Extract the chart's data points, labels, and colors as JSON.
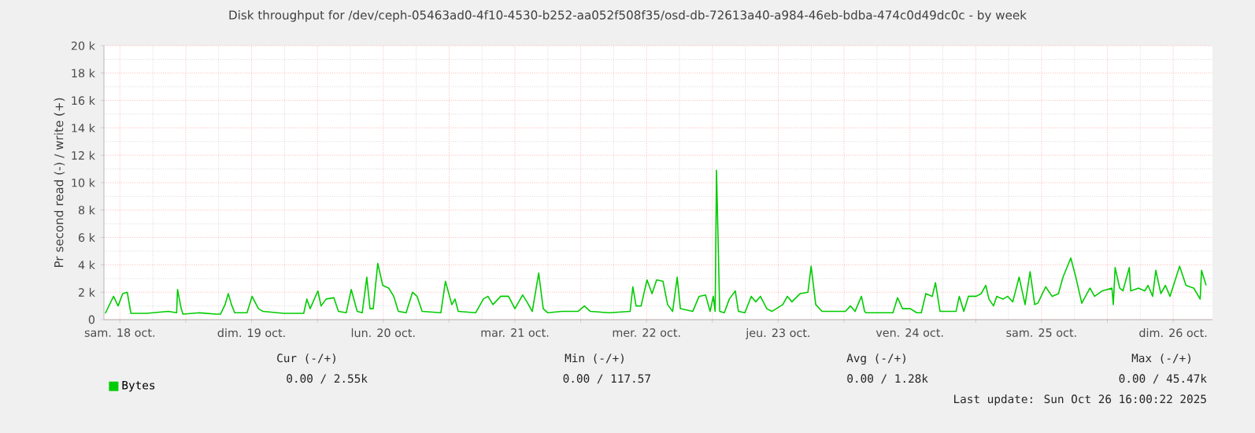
{
  "chart_data": {
    "type": "line",
    "title": "Disk throughput for /dev/ceph-05463ad0-4f10-4530-b252-aa052f508f35/osd-db-72613a40-a984-46eb-bdba-474c0d49dc0c - by week",
    "ylabel": "Pr second read (-) / write (+)",
    "xlim": [
      "2025-10-18T09:05",
      "2025-10-26T19:10"
    ],
    "ylim": [
      0,
      20000
    ],
    "xticks": [
      {
        "value": "2025-10-18T12:00",
        "label": "sam. 18 oct."
      },
      {
        "value": "2025-10-19T00:00",
        "label": null
      },
      {
        "value": "2025-10-19T12:00",
        "label": "dim. 19 oct."
      },
      {
        "value": "2025-10-20T00:00",
        "label": null
      },
      {
        "value": "2025-10-20T12:00",
        "label": "lun. 20 oct."
      },
      {
        "value": "2025-10-21T00:00",
        "label": null
      },
      {
        "value": "2025-10-21T12:00",
        "label": "mar. 21 oct."
      },
      {
        "value": "2025-10-22T00:00",
        "label": null
      },
      {
        "value": "2025-10-22T12:00",
        "label": "mer. 22 oct."
      },
      {
        "value": "2025-10-23T00:00",
        "label": null
      },
      {
        "value": "2025-10-23T12:00",
        "label": "jeu. 23 oct."
      },
      {
        "value": "2025-10-24T00:00",
        "label": null
      },
      {
        "value": "2025-10-24T12:00",
        "label": "ven. 24 oct."
      },
      {
        "value": "2025-10-25T00:00",
        "label": null
      },
      {
        "value": "2025-10-25T12:00",
        "label": "sam. 25 oct."
      },
      {
        "value": "2025-10-26T00:00",
        "label": null
      },
      {
        "value": "2025-10-26T12:00",
        "label": "dim. 26 oct."
      }
    ],
    "yticks": [
      0,
      {
        "value": 2000,
        "label": "2 k"
      },
      {
        "value": 4000,
        "label": "4 k"
      },
      {
        "value": 6000,
        "label": "6 k"
      },
      {
        "value": 8000,
        "label": "8 k"
      },
      {
        "value": 10000,
        "label": "10 k"
      },
      {
        "value": 12000,
        "label": "12 k"
      },
      {
        "value": 14000,
        "label": "14 k"
      },
      {
        "value": 16000,
        "label": "16 k"
      },
      {
        "value": 18000,
        "label": "18 k"
      },
      {
        "value": 20000,
        "label": "20 k"
      }
    ],
    "grid": true,
    "legend": "bottom left",
    "annotations": [
      "Cur (-/+)",
      "Min (-/+)",
      "Avg (-/+)",
      "Max (-/+)",
      "0.00 /         2.55k",
      "0.00 /       117.57",
      "0.00 /          1.28k",
      "0.00 /         45.47k",
      "Last update: Sun Oct 26 16:00:22 2025"
    ],
    "series": [
      {
        "name": "Bytes",
        "color": "#00cc00",
        "x": [
          "2025-10-18T09:20",
          "2025-10-18T10:50",
          "2025-10-18T11:40",
          "2025-10-18T12:30",
          "2025-10-18T13:20",
          "2025-10-18T14:00",
          "2025-10-18T16:50",
          "2025-10-18T20:50",
          "2025-10-18T22:20",
          "2025-10-18T22:30",
          "2025-10-18T23:10",
          "2025-10-18T23:30",
          "2025-10-19T02:30",
          "2025-10-19T05:30",
          "2025-10-19T06:20",
          "2025-10-19T07:10",
          "2025-10-19T07:45",
          "2025-10-19T08:20",
          "2025-10-19T08:55",
          "2025-10-19T11:10",
          "2025-10-19T12:05",
          "2025-10-19T13:15",
          "2025-10-19T14:05",
          "2025-10-19T17:50",
          "2025-10-19T21:30",
          "2025-10-19T22:05",
          "2025-10-19T22:40",
          "2025-10-20T00:05",
          "2025-10-20T00:40",
          "2025-10-20T01:35",
          "2025-10-20T03:00",
          "2025-10-20T03:50",
          "2025-10-20T05:15",
          "2025-10-20T06:10",
          "2025-10-20T07:15",
          "2025-10-20T08:10",
          "2025-10-20T09:00",
          "2025-10-20T09:35",
          "2025-10-20T10:10",
          "2025-10-20T11:00",
          "2025-10-20T11:55",
          "2025-10-20T13:00",
          "2025-10-20T13:55",
          "2025-10-20T14:45",
          "2025-10-20T16:10",
          "2025-10-20T17:20",
          "2025-10-20T18:10",
          "2025-10-20T19:05",
          "2025-10-20T22:30",
          "2025-10-20T23:20",
          "2025-10-21T00:30",
          "2025-10-21T01:05",
          "2025-10-21T01:40",
          "2025-10-21T04:50",
          "2025-10-21T06:15",
          "2025-10-21T07:05",
          "2025-10-21T08:00",
          "2025-10-21T09:25",
          "2025-10-21T10:50",
          "2025-10-21T12:00",
          "2025-10-21T13:25",
          "2025-10-21T14:20",
          "2025-10-21T15:10",
          "2025-10-21T16:20",
          "2025-10-21T17:10",
          "2025-10-21T18:00",
          "2025-10-21T20:35",
          "2025-10-21T23:30",
          "2025-10-22T00:40",
          "2025-10-22T01:45",
          "2025-10-22T05:15",
          "2025-10-22T09:00",
          "2025-10-22T09:30",
          "2025-10-22T10:05",
          "2025-10-22T11:00",
          "2025-10-22T12:05",
          "2025-10-22T13:00",
          "2025-10-22T13:50",
          "2025-10-22T15:00",
          "2025-10-22T15:50",
          "2025-10-22T16:45",
          "2025-10-22T17:35",
          "2025-10-22T18:10",
          "2025-10-22T20:25",
          "2025-10-22T21:35",
          "2025-10-22T22:45",
          "2025-10-22T23:35",
          "2025-10-23T00:10",
          "2025-10-23T00:30",
          "2025-10-23T00:45",
          "2025-10-23T01:20",
          "2025-10-23T02:10",
          "2025-10-23T03:05",
          "2025-10-23T04:10",
          "2025-10-23T04:45",
          "2025-10-23T05:55",
          "2025-10-23T07:05",
          "2025-10-23T07:55",
          "2025-10-23T08:45",
          "2025-10-23T09:55",
          "2025-10-23T10:50",
          "2025-10-23T12:50",
          "2025-10-23T13:40",
          "2025-10-23T14:30",
          "2025-10-23T16:00",
          "2025-10-23T17:25",
          "2025-10-23T18:00",
          "2025-10-23T18:50",
          "2025-10-23T20:00",
          "2025-10-24T00:15",
          "2025-10-24T01:10",
          "2025-10-24T02:00",
          "2025-10-24T03:10",
          "2025-10-24T03:45",
          "2025-10-24T04:00",
          "2025-10-24T08:55",
          "2025-10-24T09:45",
          "2025-10-24T10:40",
          "2025-10-24T12:05",
          "2025-10-24T13:15",
          "2025-10-24T14:05",
          "2025-10-24T14:55",
          "2025-10-24T16:05",
          "2025-10-24T16:40",
          "2025-10-24T17:30",
          "2025-10-24T20:25",
          "2025-10-24T21:00",
          "2025-10-24T21:50",
          "2025-10-24T22:40",
          "2025-10-25T00:05",
          "2025-10-25T01:00",
          "2025-10-25T01:50",
          "2025-10-25T02:25",
          "2025-10-25T03:15",
          "2025-10-25T03:50",
          "2025-10-25T05:00",
          "2025-10-25T05:50",
          "2025-10-25T06:45",
          "2025-10-25T07:55",
          "2025-10-25T09:00",
          "2025-10-25T09:55",
          "2025-10-25T10:45",
          "2025-10-25T11:20",
          "2025-10-25T12:45",
          "2025-10-25T13:55",
          "2025-10-25T15:05",
          "2025-10-25T15:55",
          "2025-10-25T17:20",
          "2025-10-25T18:15",
          "2025-10-25T19:20",
          "2025-10-25T20:50",
          "2025-10-25T21:40",
          "2025-10-25T23:05",
          "2025-10-26T00:50",
          "2025-10-26T01:05",
          "2025-10-26T01:25",
          "2025-10-26T02:15",
          "2025-10-26T02:50",
          "2025-10-26T04:00",
          "2025-10-26T04:15",
          "2025-10-26T05:40",
          "2025-10-26T06:50",
          "2025-10-26T07:25",
          "2025-10-26T08:15",
          "2025-10-26T08:50",
          "2025-10-26T09:45",
          "2025-10-26T10:35",
          "2025-10-26T11:25",
          "2025-10-26T13:10",
          "2025-10-26T14:20",
          "2025-10-26T15:45",
          "2025-10-26T16:55",
          "2025-10-26T17:10",
          "2025-10-26T18:00"
        ],
        "values": [
          460,
          1700,
          1000,
          1900,
          2000,
          460,
          460,
          600,
          500,
          2200,
          800,
          400,
          500,
          400,
          400,
          1100,
          1900,
          1100,
          500,
          500,
          1700,
          800,
          600,
          460,
          460,
          1500,
          800,
          2100,
          1000,
          1500,
          1600,
          600,
          500,
          2200,
          600,
          500,
          3100,
          800,
          800,
          4100,
          2500,
          2300,
          1700,
          600,
          500,
          2000,
          1700,
          600,
          500,
          2800,
          1100,
          1500,
          600,
          500,
          1500,
          1700,
          1100,
          1700,
          1700,
          800,
          1800,
          1200,
          600,
          3400,
          800,
          500,
          600,
          600,
          1000,
          600,
          500,
          600,
          2400,
          1000,
          1000,
          2900,
          1900,
          2900,
          2800,
          1100,
          600,
          3100,
          800,
          600,
          1700,
          1800,
          600,
          1700,
          600,
          10900,
          600,
          500,
          1500,
          2100,
          600,
          500,
          1700,
          1300,
          1700,
          800,
          600,
          1100,
          1700,
          1300,
          1900,
          2000,
          3900,
          1100,
          600,
          600,
          1000,
          600,
          1700,
          600,
          500,
          500,
          1600,
          800,
          800,
          500,
          500,
          1900,
          1700,
          2700,
          600,
          600,
          1700,
          600,
          1700,
          1700,
          1900,
          2500,
          1500,
          1000,
          1700,
          1500,
          1700,
          1300,
          3100,
          1100,
          3500,
          1100,
          1200,
          2400,
          1700,
          1900,
          3100,
          4500,
          3100,
          1200,
          2300,
          1700,
          2100,
          2300,
          1100,
          3800,
          2300,
          2100,
          3800,
          2100,
          2300,
          2100,
          2500,
          1700,
          3600,
          1900,
          2500,
          1700,
          3900,
          2500,
          2300,
          1500,
          3600,
          2500
        ]
      }
    ]
  }
}
